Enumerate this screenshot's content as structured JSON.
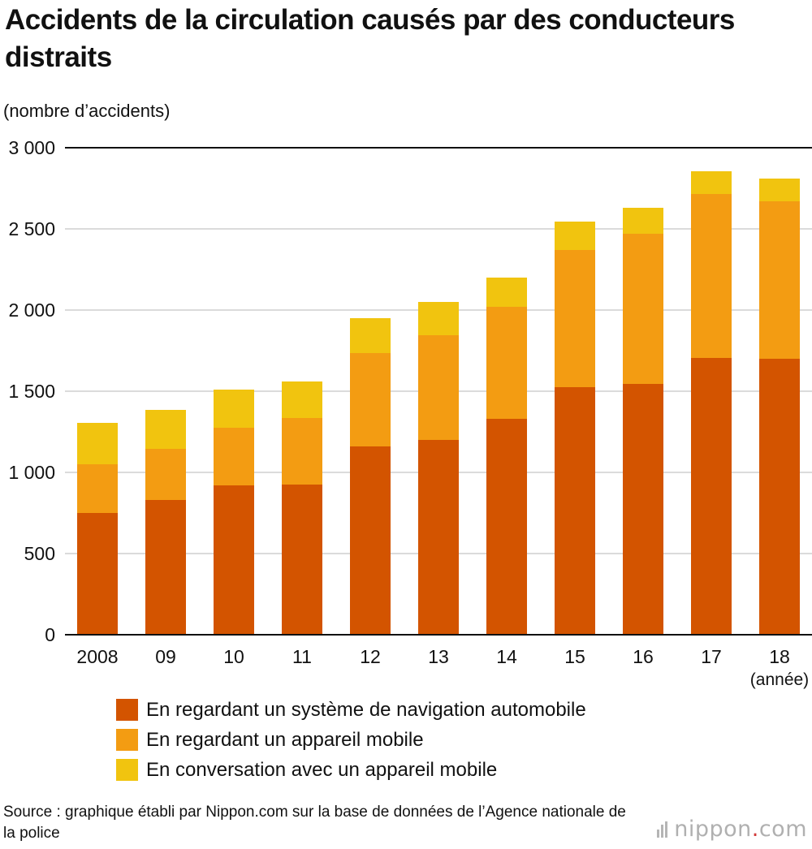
{
  "header": {
    "title": "Accidents de la circulation causés par des conducteurs distraits"
  },
  "chart_data": {
    "type": "bar",
    "stacked": true,
    "ylabel": "(nombre d’accidents)",
    "xunit": "(année)",
    "ylim": [
      0,
      3000
    ],
    "yticks": [
      0,
      500,
      1000,
      1500,
      2000,
      2500,
      3000
    ],
    "ytick_labels": [
      "0",
      "500",
      "1 000",
      "1 500",
      "2 000",
      "2 500",
      "3 000"
    ],
    "grid": true,
    "categories": [
      "2008",
      "09",
      "10",
      "11",
      "12",
      "13",
      "14",
      "15",
      "16",
      "17",
      "18"
    ],
    "series": [
      {
        "name": "En regardant un système de navigation automobile",
        "color": "#d35400",
        "values": [
          750,
          830,
          920,
          925,
          1160,
          1200,
          1330,
          1525,
          1545,
          1705,
          1700
        ]
      },
      {
        "name": "En regardant un appareil mobile",
        "color": "#f39c12",
        "values": [
          300,
          315,
          355,
          410,
          575,
          645,
          690,
          845,
          925,
          1010,
          970
        ]
      },
      {
        "name": "En conversation avec un appareil mobile",
        "color": "#f1c40f",
        "values": [
          255,
          240,
          235,
          225,
          215,
          205,
          180,
          175,
          160,
          140,
          140
        ]
      }
    ]
  },
  "footer": {
    "source": "Source : graphique établi par Nippon.com sur la base de données de l’Agence nationale de la police",
    "brand_name": "nippon",
    "brand_dot": ".",
    "brand_tld": "com"
  }
}
